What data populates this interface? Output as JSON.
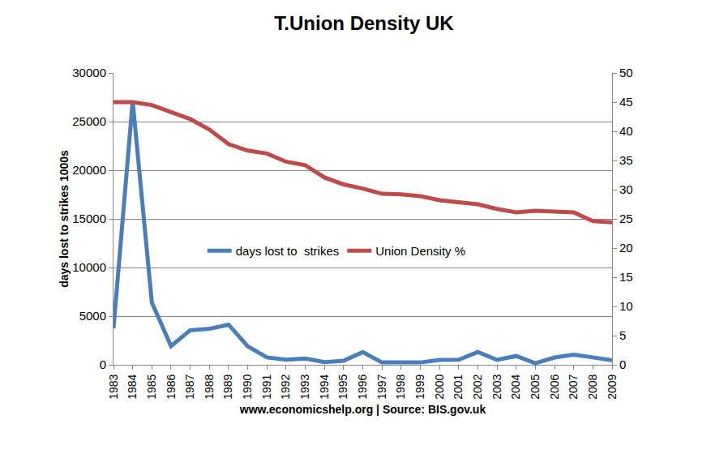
{
  "chart_data": {
    "type": "line",
    "title": "T.Union Density UK",
    "x_label": "www.economicshelp.org | Source: BIS.gov.uk",
    "y_label": "days lost to strikes 1000s",
    "categories": [
      "1983",
      "1984",
      "1985",
      "1986",
      "1987",
      "1988",
      "1989",
      "1990",
      "1991",
      "1992",
      "1993",
      "1994",
      "1995",
      "1996",
      "1997",
      "1998",
      "1999",
      "2000",
      "2001",
      "2002",
      "2003",
      "2004",
      "2005",
      "2006",
      "2007",
      "2008",
      "2009"
    ],
    "series": [
      {
        "name": "days lost to  strikes",
        "color": "#4a7ebb",
        "axis": "y",
        "values": [
          3750,
          27100,
          6400,
          1920,
          3550,
          3700,
          4130,
          1900,
          760,
          530,
          650,
          280,
          420,
          1300,
          240,
          280,
          240,
          500,
          520,
          1320,
          500,
          900,
          160,
          750,
          1040,
          760,
          460
        ]
      },
      {
        "name": "Union Density %",
        "color": "#be4b48",
        "axis": "y2",
        "values": [
          45.0,
          45.0,
          44.5,
          43.3,
          42.1,
          40.3,
          37.8,
          36.7,
          36.2,
          34.8,
          34.2,
          32.1,
          30.9,
          30.2,
          29.3,
          29.2,
          28.9,
          28.2,
          27.9,
          27.5,
          26.7,
          26.1,
          26.4,
          26.3,
          26.1,
          24.6,
          24.4
        ]
      }
    ],
    "ylim": [
      0,
      30000
    ],
    "yticks": [
      0,
      5000,
      10000,
      15000,
      20000,
      25000,
      30000
    ],
    "y2lim": [
      0,
      50
    ],
    "y2ticks": [
      0,
      5,
      10,
      15,
      20,
      25,
      30,
      35,
      40,
      45,
      50
    ],
    "grid": true,
    "legend": "center"
  }
}
